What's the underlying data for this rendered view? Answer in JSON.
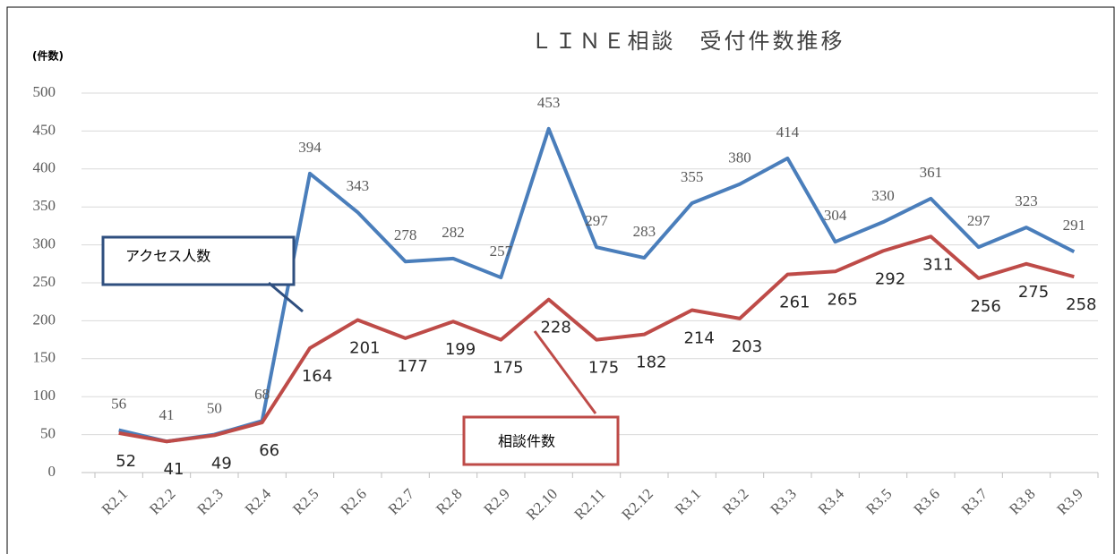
{
  "chart_data": {
    "type": "line",
    "title": "ＬＩＮＥ相談　受付件数推移",
    "ylabel": "(件数)",
    "categories": [
      "R2.1",
      "R2.2",
      "R2.3",
      "R2.4",
      "R2.5",
      "R2.6",
      "R2.7",
      "R2.8",
      "R2.9",
      "R2.10",
      "R2.11",
      "R2.12",
      "R3.1",
      "R3.2",
      "R3.3",
      "R3.4",
      "R3.5",
      "R3.6",
      "R3.7",
      "R3.8",
      "R3.9"
    ],
    "series": [
      {
        "name": "アクセス人数",
        "color": "#4a7ebb",
        "values": [
          56,
          41,
          50,
          68,
          394,
          343,
          278,
          282,
          257,
          453,
          297,
          283,
          355,
          380,
          414,
          304,
          330,
          361,
          297,
          323,
          291
        ]
      },
      {
        "name": "相談件数",
        "color": "#be4b48",
        "values": [
          52,
          41,
          49,
          66,
          164,
          201,
          177,
          199,
          175,
          228,
          175,
          182,
          214,
          203,
          261,
          265,
          292,
          311,
          256,
          275,
          258
        ]
      }
    ],
    "ylim": [
      0,
      500
    ],
    "yticks": [
      0,
      50,
      100,
      150,
      200,
      250,
      300,
      350,
      400,
      450,
      500
    ],
    "grid": true
  }
}
